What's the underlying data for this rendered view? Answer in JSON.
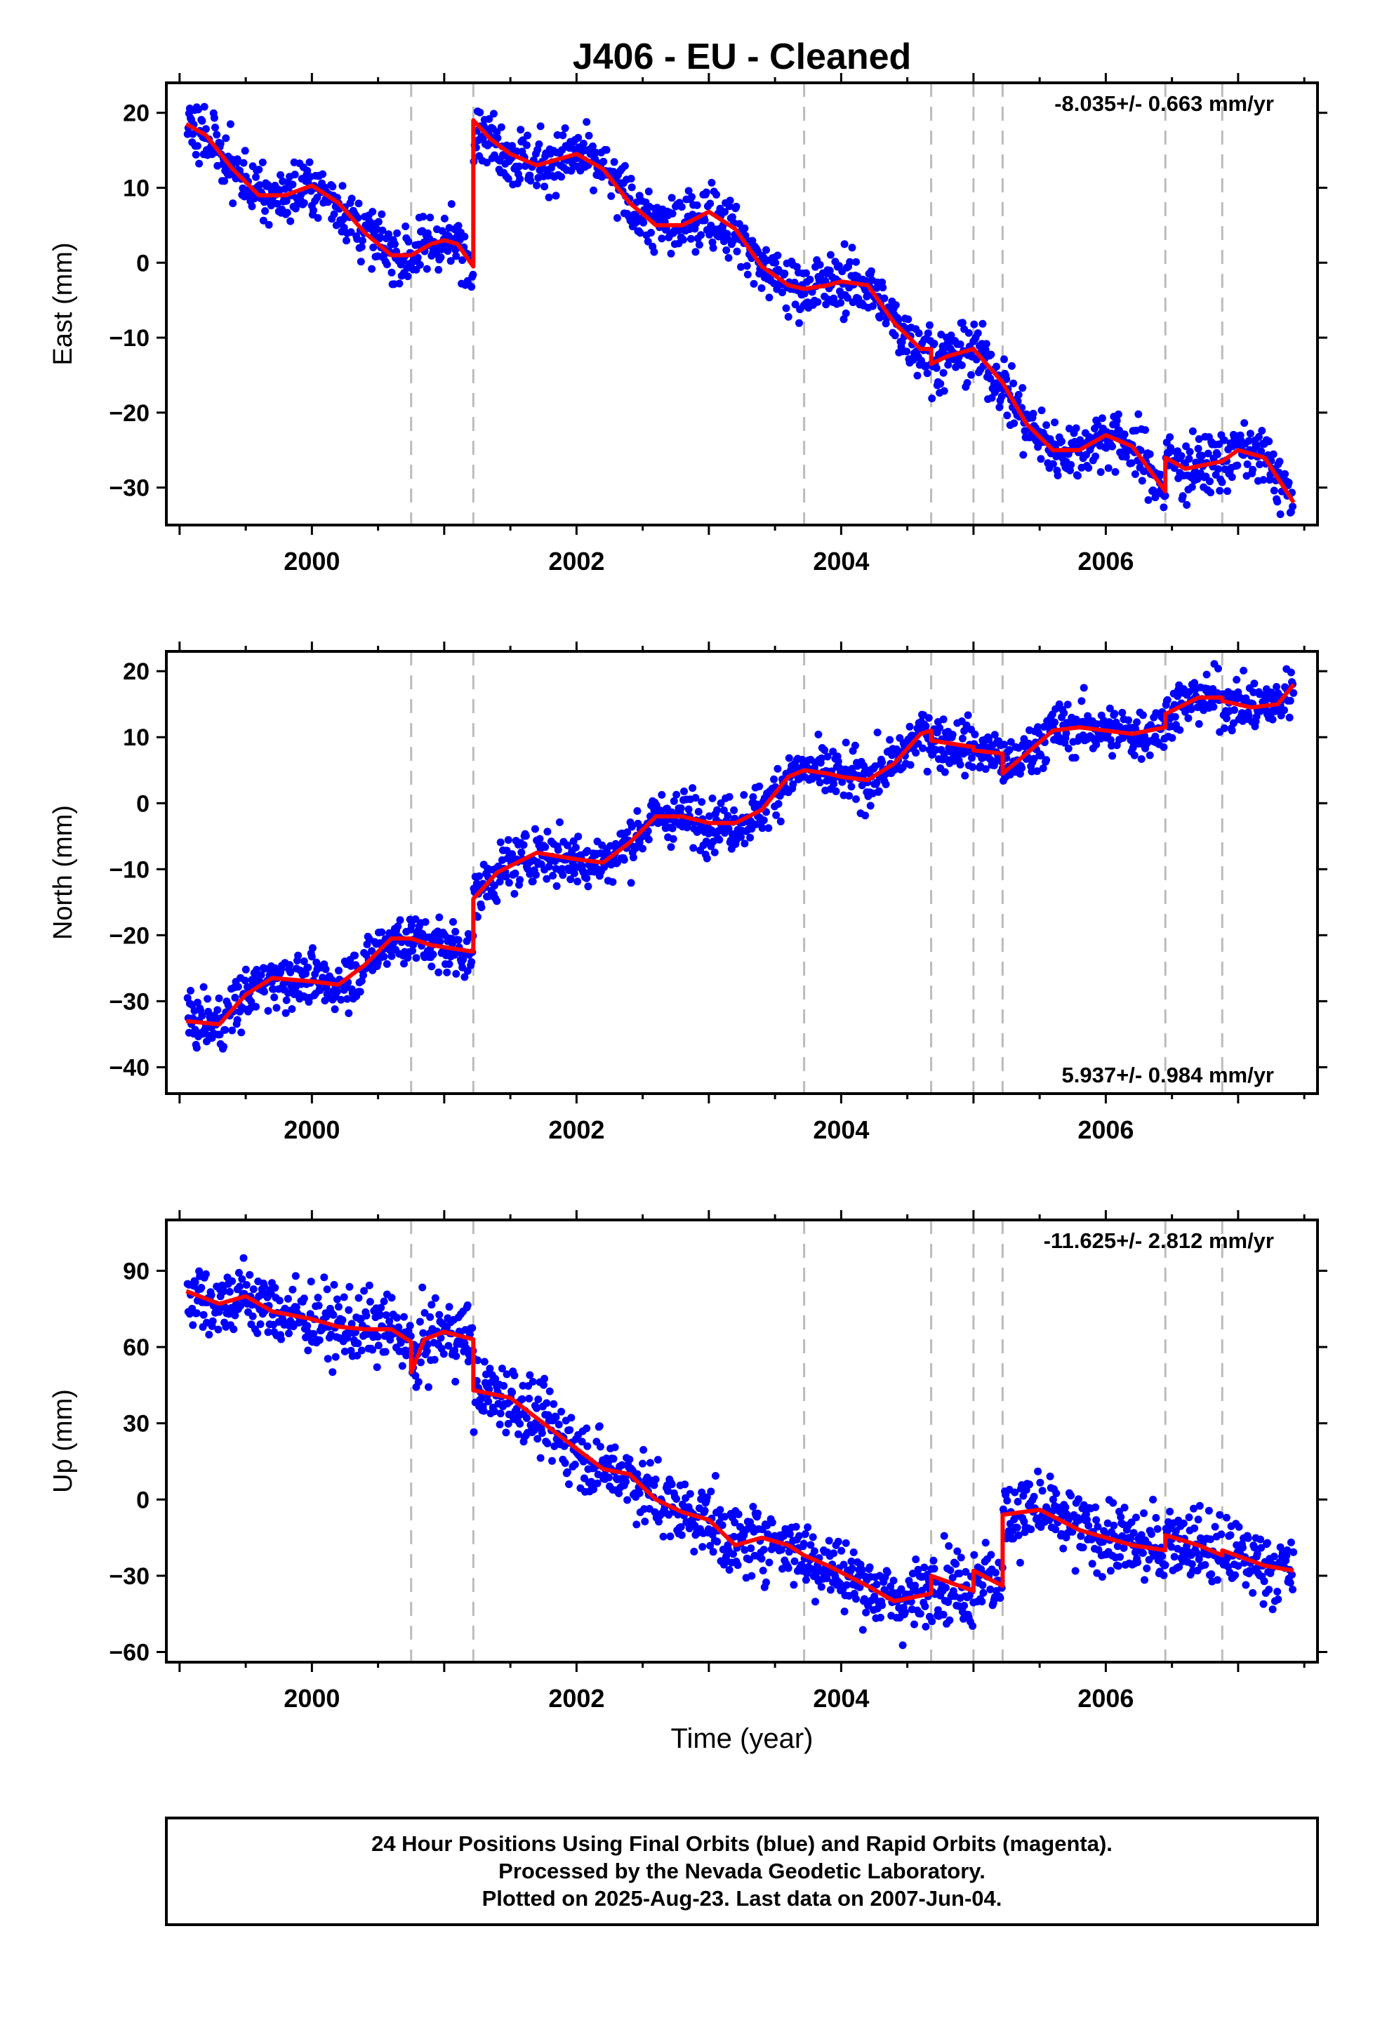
{
  "chart_data": {
    "type": "scatter",
    "title": "J406  - EU - Cleaned",
    "xlabel": "Time (year)",
    "xlim": [
      1998.9,
      2007.6
    ],
    "x_ticks": [
      "2000",
      "2002",
      "2004",
      "2006"
    ],
    "x_tick_values": [
      2000,
      2002,
      2004,
      2006
    ],
    "grid": false,
    "colors": {
      "final_orbits": "#0000ff",
      "model": "#ff0000",
      "breaks": "#bbbbbb"
    },
    "event_lines": [
      2000.75,
      2001.22,
      2003.72,
      2004.68,
      2005.0,
      2005.22,
      2006.45,
      2006.88
    ],
    "panels": [
      {
        "ylabel": "East (mm)",
        "ylim": [
          -35,
          24
        ],
        "y_ticks": [
          20,
          10,
          0,
          -10,
          -20,
          -30
        ],
        "rate_label": "-8.035+/- 0.663 mm/yr",
        "rate_position": "top-right",
        "noise": 2.0,
        "model_x": [
          2000.75,
          2001.22,
          2001.22,
          2003.72,
          2004.68,
          2005.0,
          2005.22,
          2006.45,
          2006.88,
          2007.42
        ],
        "model": {
          "x": [
            1999.05,
            1999.2,
            1999.4,
            1999.6,
            1999.8,
            2000.0,
            2000.2,
            2000.4,
            2000.6,
            2000.75,
            2000.9,
            2001.0,
            2001.1,
            2001.22,
            2001.22,
            2001.35,
            2001.5,
            2001.7,
            2001.9,
            2002.0,
            2002.2,
            2002.4,
            2002.6,
            2002.8,
            2003.0,
            2003.2,
            2003.4,
            2003.6,
            2003.72,
            2003.9,
            2004.0,
            2004.2,
            2004.4,
            2004.6,
            2004.68,
            2004.68,
            2004.8,
            2005.0,
            2005.0,
            2005.22,
            2005.22,
            2005.4,
            2005.6,
            2005.8,
            2006.0,
            2006.2,
            2006.45,
            2006.45,
            2006.6,
            2006.88,
            2006.88,
            2007.0,
            2007.2,
            2007.42
          ],
          "y": [
            18.5,
            17.0,
            12.5,
            9.0,
            9.0,
            10.3,
            8.0,
            4.0,
            1.0,
            1.0,
            2.5,
            3.0,
            2.5,
            -0.5,
            19.0,
            16.5,
            14.5,
            13.0,
            14.0,
            14.5,
            12.5,
            8.0,
            5.0,
            5.0,
            6.8,
            4.5,
            -0.5,
            -3.0,
            -3.5,
            -3.0,
            -2.5,
            -3.0,
            -8.0,
            -11.5,
            -11.5,
            -13.5,
            -12.5,
            -11.5,
            -11.5,
            -16.0,
            -16.0,
            -21.5,
            -25.0,
            -25.0,
            -23.0,
            -24.5,
            -30.5,
            -26.0,
            -27.5,
            -26.5,
            -26.5,
            -25.0,
            -26.0,
            -32.0
          ]
        }
      },
      {
        "ylabel": "North (mm)",
        "ylim": [
          -44,
          23
        ],
        "y_ticks": [
          20,
          10,
          0,
          -10,
          -20,
          -30,
          -40
        ],
        "rate_label": "5.937+/- 0.984 mm/yr",
        "rate_position": "bottom-right",
        "noise": 2.0,
        "model": {
          "x": [
            1999.05,
            1999.3,
            1999.5,
            1999.7,
            2000.0,
            2000.2,
            2000.4,
            2000.6,
            2000.75,
            2000.9,
            2001.22,
            2001.22,
            2001.4,
            2001.7,
            2002.0,
            2002.2,
            2002.4,
            2002.6,
            2002.8,
            2003.0,
            2003.2,
            2003.4,
            2003.6,
            2003.72,
            2003.9,
            2004.0,
            2004.2,
            2004.4,
            2004.6,
            2004.68,
            2004.68,
            2005.0,
            2005.0,
            2005.22,
            2005.22,
            2005.4,
            2005.6,
            2005.8,
            2006.0,
            2006.2,
            2006.45,
            2006.45,
            2006.7,
            2006.88,
            2006.88,
            2007.1,
            2007.3,
            2007.42
          ],
          "y": [
            -33.0,
            -33.5,
            -29.0,
            -26.5,
            -27.0,
            -27.5,
            -24.5,
            -20.5,
            -20.5,
            -21.5,
            -22.5,
            -14.5,
            -10.5,
            -7.5,
            -8.5,
            -9.0,
            -6.0,
            -2.0,
            -2.0,
            -3.0,
            -3.0,
            -1.0,
            4.0,
            5.0,
            4.5,
            4.0,
            3.5,
            6.0,
            10.5,
            11.0,
            9.5,
            8.5,
            8.0,
            7.5,
            4.5,
            7.5,
            11.0,
            11.5,
            11.0,
            10.5,
            11.5,
            13.5,
            16.0,
            16.0,
            15.5,
            14.5,
            15.0,
            18.0
          ]
        }
      },
      {
        "ylabel": "Up (mm)",
        "ylim": [
          -64,
          110
        ],
        "y_ticks": [
          90,
          60,
          30,
          0,
          -30,
          -60
        ],
        "rate_label": "-11.625+/- 2.812 mm/yr",
        "rate_position": "top-right",
        "noise": 7.0,
        "model": {
          "x": [
            1999.05,
            1999.3,
            1999.5,
            1999.7,
            2000.0,
            2000.2,
            2000.4,
            2000.6,
            2000.75,
            2000.75,
            2000.85,
            2001.0,
            2001.22,
            2001.22,
            2001.5,
            2001.8,
            2002.0,
            2002.2,
            2002.4,
            2002.6,
            2002.8,
            2003.0,
            2003.2,
            2003.4,
            2003.6,
            2003.72,
            2003.9,
            2004.2,
            2004.4,
            2004.68,
            2004.68,
            2005.0,
            2005.0,
            2005.22,
            2005.22,
            2005.5,
            2005.8,
            2006.0,
            2006.2,
            2006.45,
            2006.45,
            2006.7,
            2006.88,
            2006.88,
            2007.2,
            2007.42
          ],
          "y": [
            82.0,
            77.0,
            80.0,
            74.0,
            71.0,
            68.0,
            67.0,
            67.0,
            62.0,
            50.0,
            63.0,
            66.0,
            63.0,
            43.0,
            40.0,
            28.0,
            20.0,
            12.0,
            10.0,
            0.0,
            -5.0,
            -8.0,
            -18.0,
            -15.0,
            -18.0,
            -22.0,
            -26.0,
            -34.0,
            -40.0,
            -37.0,
            -30.0,
            -36.0,
            -28.0,
            -34.0,
            -6.0,
            -4.0,
            -12.0,
            -15.0,
            -18.0,
            -20.0,
            -14.0,
            -18.0,
            -22.0,
            -20.0,
            -26.0,
            -28.0
          ]
        }
      }
    ],
    "footer_lines": [
      "24 Hour Positions Using Final Orbits (blue) and Rapid Orbits (magenta).",
      "Processed by the Nevada Geodetic Laboratory.",
      "Plotted on 2025-Aug-23. Last data on 2007-Jun-04."
    ]
  }
}
